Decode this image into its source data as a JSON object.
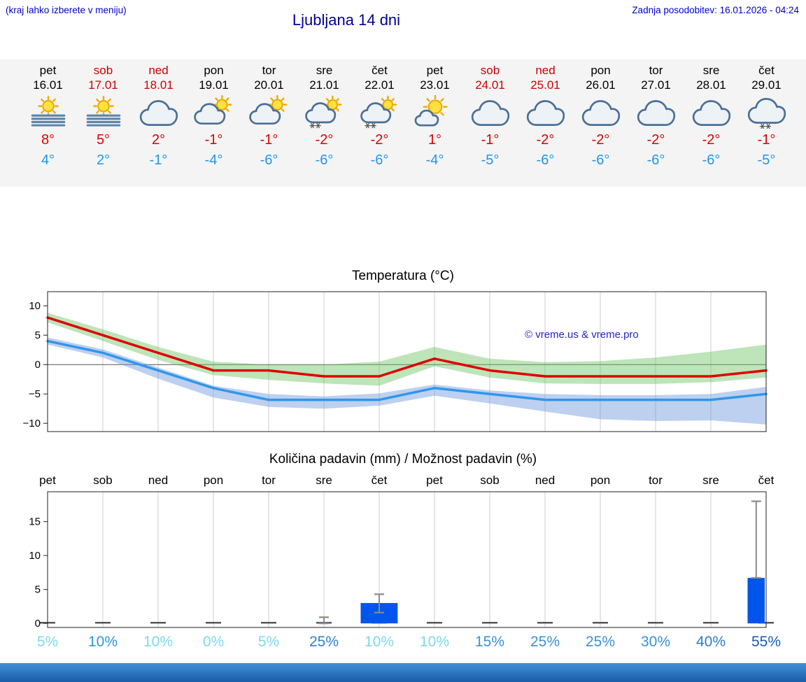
{
  "header": {
    "note_left": "(kraj lahko izberete v meniju)",
    "title": "Ljubljana 14 dni",
    "update": "Zadnja posodobitev: 16.01.2026 - 04:24"
  },
  "colors": {
    "link_blue": "#0000cc",
    "title_blue": "#000099",
    "temp_high_red": "#dd0000",
    "temp_low_blue": "#2196e8",
    "weekend_red": "#cc0000",
    "strip_gray": "#f4f4f4",
    "footer_blue": "#2a7bc8"
  },
  "forecast": {
    "days": [
      {
        "name": "pet",
        "date": "16.01",
        "weekend": false,
        "icon": "fog-sun",
        "high": "8°",
        "low": "4°"
      },
      {
        "name": "sob",
        "date": "17.01",
        "weekend": true,
        "icon": "fog-sun",
        "high": "5°",
        "low": "2°"
      },
      {
        "name": "ned",
        "date": "18.01",
        "weekend": true,
        "icon": "cloudy",
        "high": "2°",
        "low": "-1°"
      },
      {
        "name": "pon",
        "date": "19.01",
        "weekend": false,
        "icon": "partly-cloudy",
        "high": "-1°",
        "low": "-4°"
      },
      {
        "name": "tor",
        "date": "20.01",
        "weekend": false,
        "icon": "partly-cloudy",
        "high": "-1°",
        "low": "-6°"
      },
      {
        "name": "sre",
        "date": "21.01",
        "weekend": false,
        "icon": "partly-cloudy-snow",
        "high": "-2°",
        "low": "-6°"
      },
      {
        "name": "čet",
        "date": "22.01",
        "weekend": false,
        "icon": "partly-cloudy-snow",
        "high": "-2°",
        "low": "-6°"
      },
      {
        "name": "pet",
        "date": "23.01",
        "weekend": false,
        "icon": "mostly-sunny",
        "high": "1°",
        "low": "-4°"
      },
      {
        "name": "sob",
        "date": "24.01",
        "weekend": true,
        "icon": "cloudy",
        "high": "-1°",
        "low": "-5°"
      },
      {
        "name": "ned",
        "date": "25.01",
        "weekend": true,
        "icon": "cloudy",
        "high": "-2°",
        "low": "-6°"
      },
      {
        "name": "pon",
        "date": "26.01",
        "weekend": false,
        "icon": "cloudy",
        "high": "-2°",
        "low": "-6°"
      },
      {
        "name": "tor",
        "date": "27.01",
        "weekend": false,
        "icon": "cloudy",
        "high": "-2°",
        "low": "-6°"
      },
      {
        "name": "sre",
        "date": "28.01",
        "weekend": false,
        "icon": "cloudy",
        "high": "-2°",
        "low": "-6°"
      },
      {
        "name": "čet",
        "date": "29.01",
        "weekend": false,
        "icon": "cloudy-snow",
        "high": "-1°",
        "low": "-5°"
      }
    ]
  },
  "chart_data": [
    {
      "type": "line",
      "title": "Temperatura (°C)",
      "watermark": "© vreme.us & vreme.pro",
      "watermark_color": "#2424c8",
      "x_dates": [
        "16.01",
        "17.01",
        "18.01",
        "19.01",
        "20.01",
        "21.01",
        "22.01",
        "23.01",
        "24.01",
        "25.01",
        "26.01",
        "27.01",
        "28.01",
        "29.01"
      ],
      "ylim": [
        -11.4,
        12.4
      ],
      "yticks": [
        -10,
        -5,
        0,
        5,
        10
      ],
      "series": [
        {
          "name": "max temperatura",
          "color": "#e00000",
          "values": [
            8,
            5,
            2,
            -1,
            -1,
            -2,
            -2,
            1,
            -1,
            -2,
            -2,
            -2,
            -2,
            -1
          ]
        },
        {
          "name": "min temperatura",
          "color": "#2f97ec",
          "values": [
            4,
            2,
            -1,
            -4,
            -6,
            -6,
            -6,
            -4,
            -5,
            -6,
            -6,
            -6,
            -6,
            -5
          ]
        }
      ],
      "bands": [
        {
          "name": "max razpon",
          "color": "rgba(110,195,100,0.45)",
          "upper": [
            8.8,
            6,
            3,
            0.5,
            0,
            0,
            0.5,
            3,
            1,
            0.4,
            0.6,
            1.2,
            2.2,
            3.4
          ],
          "lower": [
            7.2,
            4,
            0.8,
            -1.8,
            -2.6,
            -3.2,
            -3.6,
            -0.3,
            -2.2,
            -3.2,
            -3.3,
            -3.3,
            -3,
            -2.2
          ]
        },
        {
          "name": "min razpon",
          "color": "rgba(110,150,220,0.45)",
          "upper": [
            4.6,
            2.6,
            -0.5,
            -3.6,
            -5,
            -5.4,
            -4.9,
            -3.4,
            -4.4,
            -5,
            -5.2,
            -5.2,
            -5,
            -3.8
          ],
          "lower": [
            3.4,
            1.2,
            -2.4,
            -5.6,
            -7.2,
            -7.5,
            -7,
            -5.3,
            -6.6,
            -8,
            -9.3,
            -9.6,
            -9.5,
            -10.2
          ]
        }
      ]
    },
    {
      "type": "bar",
      "title": "Količina padavin (mm) / Možnost padavin (%)",
      "day_labels": [
        "pet",
        "sob",
        "ned",
        "pon",
        "tor",
        "sre",
        "čet",
        "pet",
        "sob",
        "ned",
        "pon",
        "tor",
        "sre",
        "čet"
      ],
      "ylim": [
        -0.6,
        19.4
      ],
      "yticks": [
        0,
        5,
        10,
        15
      ],
      "bar_color": "#0055ee",
      "values_mm": [
        0,
        0,
        0,
        0,
        0,
        0.1,
        3,
        0,
        0,
        0,
        0,
        0,
        0,
        6.7
      ],
      "bars": [
        {
          "date": "21.01",
          "pos": 5,
          "width": 0.25,
          "value": 0.1,
          "whisker": [
            0,
            0.9
          ]
        },
        {
          "date": "22.01",
          "pos": 6,
          "width": 0.67,
          "value": 3,
          "whisker": [
            1.6,
            4.3
          ]
        },
        {
          "date": "29.01",
          "pos": 12.82,
          "width": 0.31,
          "value": 6.7,
          "whisker": [
            6.7,
            18
          ]
        }
      ],
      "probabilities": [
        {
          "value": 5,
          "label": "5%",
          "color": "#7dd8ec"
        },
        {
          "value": 10,
          "label": "10%",
          "color": "#2f96dc"
        },
        {
          "value": 10,
          "label": "10%",
          "color": "#7dd8ec"
        },
        {
          "value": 0,
          "label": "0%",
          "color": "#7dd8ec"
        },
        {
          "value": 5,
          "label": "5%",
          "color": "#7dd8ec"
        },
        {
          "value": 25,
          "label": "25%",
          "color": "#2f80cc"
        },
        {
          "value": 10,
          "label": "10%",
          "color": "#7dd8ec"
        },
        {
          "value": 10,
          "label": "10%",
          "color": "#7dd8ec"
        },
        {
          "value": 15,
          "label": "15%",
          "color": "#3c8fd8"
        },
        {
          "value": 25,
          "label": "25%",
          "color": "#3c8fd8"
        },
        {
          "value": 25,
          "label": "25%",
          "color": "#3c8fd8"
        },
        {
          "value": 30,
          "label": "30%",
          "color": "#3c8fd8"
        },
        {
          "value": 40,
          "label": "40%",
          "color": "#2f7bc8"
        },
        {
          "value": 55,
          "label": "55%",
          "color": "#1a5ab4"
        }
      ]
    }
  ]
}
